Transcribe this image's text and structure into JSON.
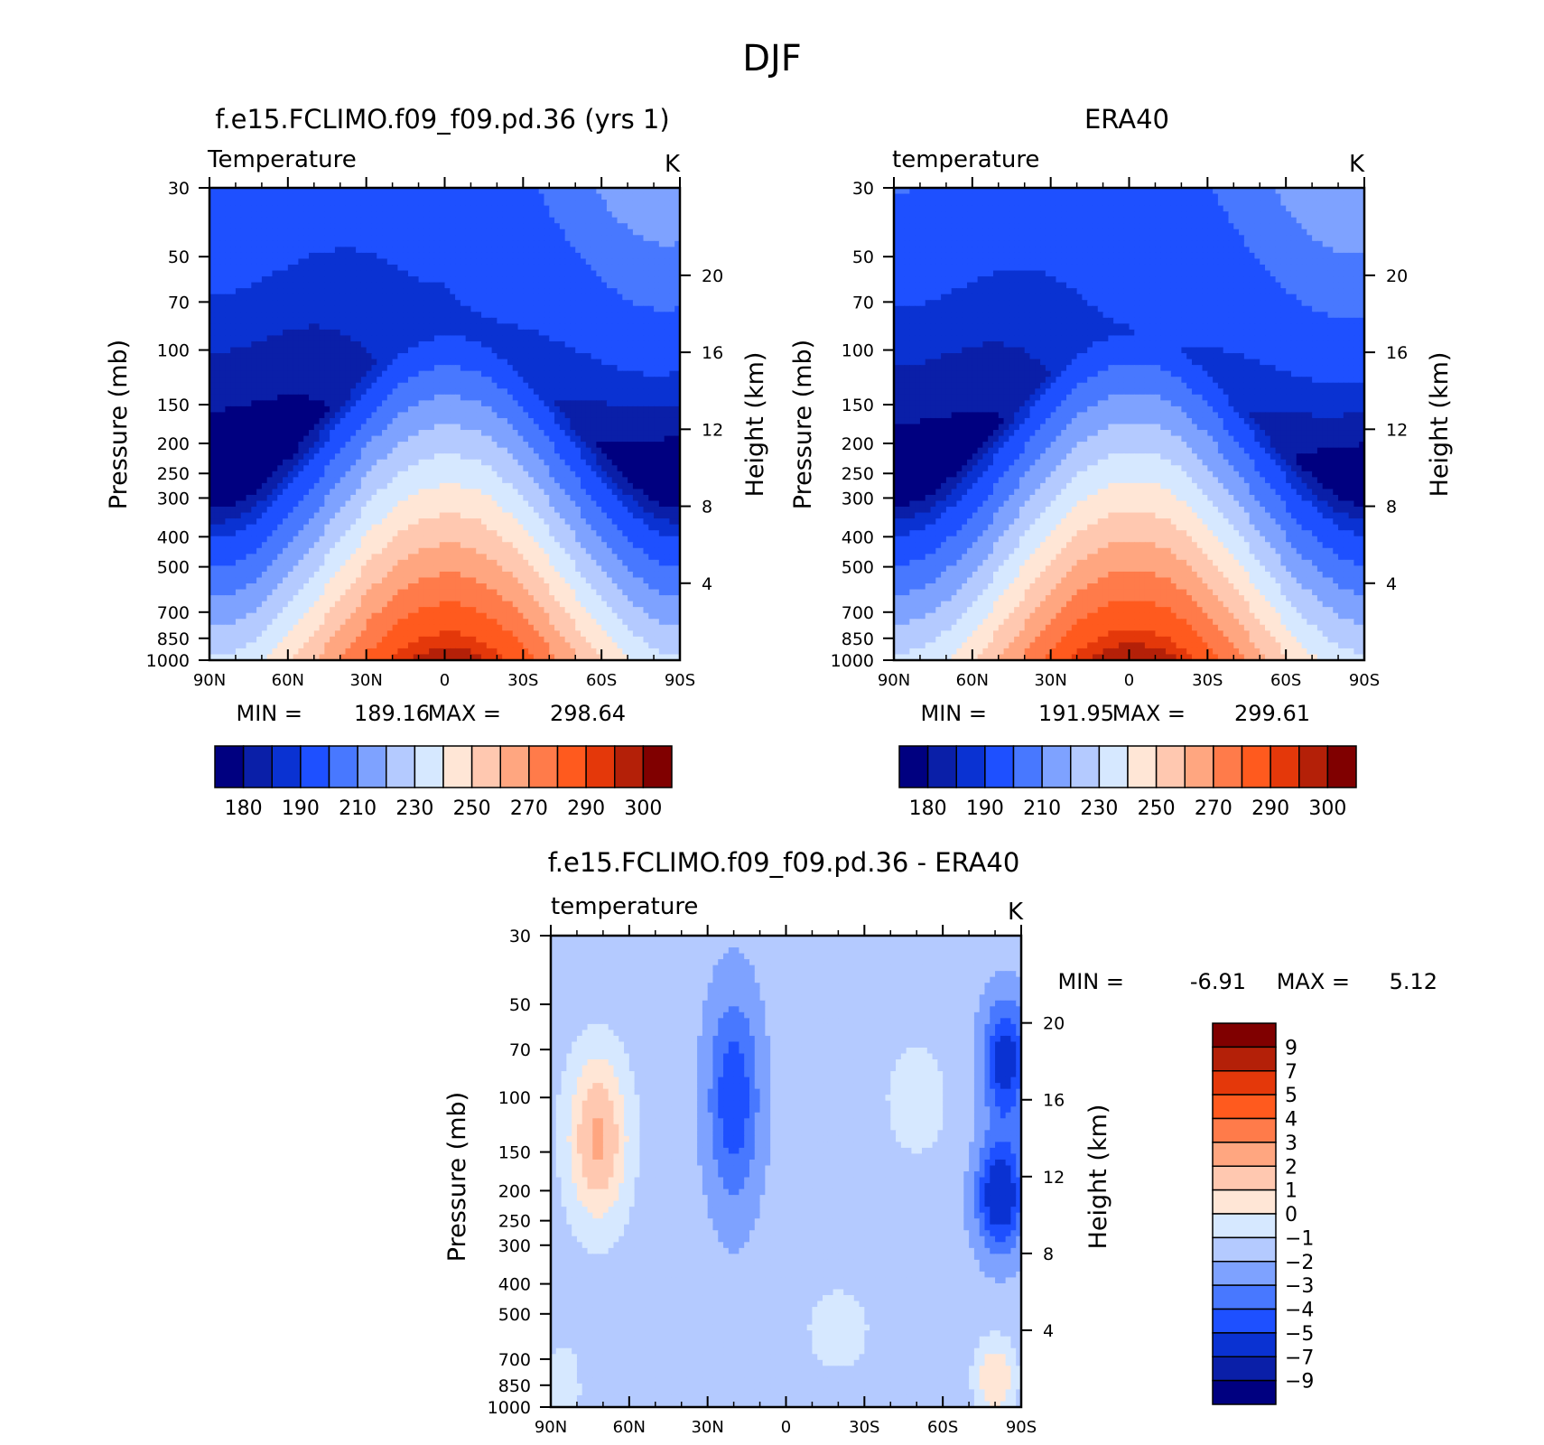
{
  "figure": {
    "title": "DJF"
  },
  "colors": {
    "abs_levels": [
      "#000080",
      "#0a1fa8",
      "#0a32d2",
      "#1e50ff",
      "#4878ff",
      "#7ea2ff",
      "#b4caff",
      "#d6e8ff",
      "#ffe6d6",
      "#ffc8b0",
      "#ffa680",
      "#ff7b4a",
      "#ff5a1e",
      "#e4380a",
      "#b42008",
      "#800000"
    ],
    "diff_levels": [
      "#000080",
      "#0a1fa8",
      "#0a32d2",
      "#1e50ff",
      "#4878ff",
      "#7ea2ff",
      "#b4caff",
      "#d6e8ff",
      "#ffe6d6",
      "#ffc8b0",
      "#ffa680",
      "#ff7b4a",
      "#ff5a1e",
      "#e4380a",
      "#b42008",
      "#800000"
    ]
  },
  "chart_data": [
    {
      "type": "heatmap",
      "title": "f.e15.FCLIMO.f09_f09.pd.36 (yrs  1)",
      "left_label": "Temperature",
      "units": "K",
      "ylabel": "Pressure (mb)",
      "ylabel_right": "Height (km)",
      "x_ticks": [
        "90N",
        "60N",
        "30N",
        "0",
        "30S",
        "60S",
        "90S"
      ],
      "y_ticks": [
        "30",
        "50",
        "70",
        "100",
        "150",
        "200",
        "250",
        "300",
        "400",
        "500",
        "700",
        "850",
        "1000"
      ],
      "height_ticks": [
        "4",
        "8",
        "12",
        "16",
        "20"
      ],
      "min_label": "MIN =",
      "min_value": "189.16",
      "max_label": "MAX =",
      "max_value": "298.64",
      "colorbar_labels": [
        "180",
        "190",
        "210",
        "230",
        "250",
        "270",
        "290",
        "300"
      ],
      "levels": [
        180,
        185,
        190,
        200,
        210,
        220,
        230,
        240,
        250,
        260,
        270,
        280,
        290,
        295,
        300
      ],
      "surface_temp_k": 298.6,
      "tropopause_min_k": 189.2
    },
    {
      "type": "heatmap",
      "title": "ERA40",
      "left_label": "temperature",
      "units": "K",
      "ylabel": "Pressure (mb)",
      "ylabel_right": "Height (km)",
      "x_ticks": [
        "90N",
        "60N",
        "30N",
        "0",
        "30S",
        "60S",
        "90S"
      ],
      "y_ticks": [
        "30",
        "50",
        "70",
        "100",
        "150",
        "200",
        "250",
        "300",
        "400",
        "500",
        "700",
        "850",
        "1000"
      ],
      "height_ticks": [
        "4",
        "8",
        "12",
        "16",
        "20"
      ],
      "min_label": "MIN =",
      "min_value": "191.95",
      "max_label": "MAX =",
      "max_value": "299.61",
      "colorbar_labels": [
        "180",
        "190",
        "210",
        "230",
        "250",
        "270",
        "290",
        "300"
      ],
      "levels": [
        180,
        185,
        190,
        200,
        210,
        220,
        230,
        240,
        250,
        260,
        270,
        280,
        290,
        295,
        300
      ],
      "surface_temp_k": 299.6,
      "tropopause_min_k": 192.0
    },
    {
      "type": "heatmap",
      "title": "f.e15.FCLIMO.f09_f09.pd.36 - ERA40",
      "left_label": "temperature",
      "units": "K",
      "ylabel": "Pressure (mb)",
      "ylabel_right": "Height (km)",
      "x_ticks": [
        "90N",
        "60N",
        "30N",
        "0",
        "30S",
        "60S",
        "90S"
      ],
      "y_ticks": [
        "30",
        "50",
        "70",
        "100",
        "150",
        "200",
        "250",
        "300",
        "400",
        "500",
        "700",
        "850",
        "1000"
      ],
      "height_ticks": [
        "4",
        "8",
        "12",
        "16",
        "20"
      ],
      "min_label": "MIN =",
      "min_value": "-6.91",
      "max_label": "MAX =",
      "max_value": "5.12",
      "colorbar_labels": [
        "9",
        "7",
        "5",
        "4",
        "3",
        "2",
        "1",
        "0",
        "−1",
        "−2",
        "−3",
        "−4",
        "−5",
        "−7",
        "−9"
      ],
      "levels": [
        -9,
        -7,
        -5,
        -4,
        -3,
        -2,
        -1,
        0,
        1,
        2,
        3,
        4,
        5,
        7,
        9
      ]
    }
  ]
}
